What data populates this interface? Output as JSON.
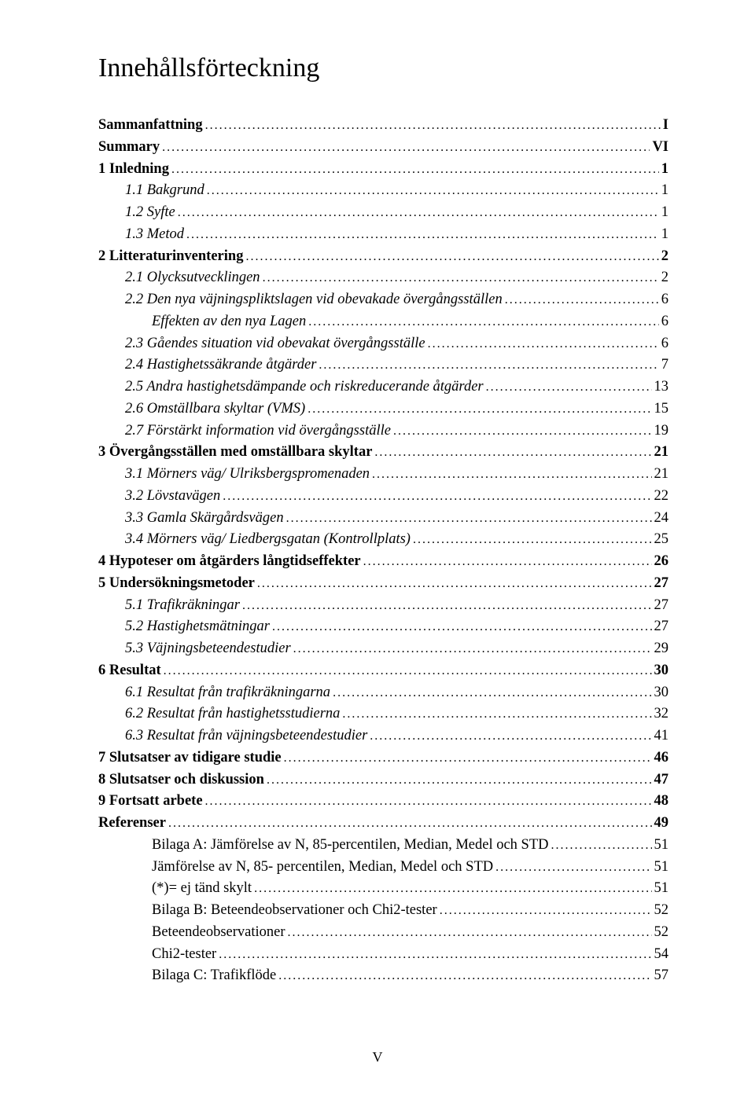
{
  "title": "Innehållsförteckning",
  "page_number": "V",
  "typography": {
    "title_fontsize_pt": 26,
    "body_fontsize_pt": 14,
    "font_family": "Times New Roman",
    "text_color": "#000000",
    "background_color": "#ffffff"
  },
  "toc": [
    {
      "label": "Sammanfattning",
      "page": "I",
      "level": 0,
      "bold": true,
      "italic": false
    },
    {
      "label": "Summary",
      "page": "VI",
      "level": 0,
      "bold": true,
      "italic": false
    },
    {
      "label": "1   Inledning",
      "page": "1",
      "level": 0,
      "bold": true,
      "italic": false
    },
    {
      "label": "1.1   Bakgrund",
      "page": "1",
      "level": 1,
      "bold": false,
      "italic": true
    },
    {
      "label": "1.2   Syfte",
      "page": "1",
      "level": 1,
      "bold": false,
      "italic": true
    },
    {
      "label": "1.3   Metod",
      "page": "1",
      "level": 1,
      "bold": false,
      "italic": true
    },
    {
      "label": "2   Litteraturinventering",
      "page": "2",
      "level": 0,
      "bold": true,
      "italic": false
    },
    {
      "label": "2.1   Olycksutvecklingen",
      "page": "2",
      "level": 1,
      "bold": false,
      "italic": true
    },
    {
      "label": "2.2   Den nya väjningspliktslagen vid obevakade övergångsställen",
      "page": "6",
      "level": 1,
      "bold": false,
      "italic": true
    },
    {
      "label": "Effekten av den nya Lagen",
      "page": "6",
      "level": 2,
      "bold": false,
      "italic": true
    },
    {
      "label": "2.3   Gåendes situation vid obevakat övergångsställe",
      "page": "6",
      "level": 1,
      "bold": false,
      "italic": true
    },
    {
      "label": "2.4   Hastighetssäkrande åtgärder",
      "page": "7",
      "level": 1,
      "bold": false,
      "italic": true
    },
    {
      "label": "2.5   Andra hastighetsdämpande och riskreducerande åtgärder",
      "page": "13",
      "level": 1,
      "bold": false,
      "italic": true
    },
    {
      "label": "2.6   Omställbara skyltar (VMS)",
      "page": "15",
      "level": 1,
      "bold": false,
      "italic": true
    },
    {
      "label": "2.7   Förstärkt information vid övergångsställe",
      "page": "19",
      "level": 1,
      "bold": false,
      "italic": true
    },
    {
      "label": "3   Övergångsställen med omställbara skyltar",
      "page": "21",
      "level": 0,
      "bold": true,
      "italic": false
    },
    {
      "label": "3.1   Mörners väg/ Ulriksbergspromenaden",
      "page": "21",
      "level": 1,
      "bold": false,
      "italic": true
    },
    {
      "label": "3.2   Lövstavägen",
      "page": "22",
      "level": 1,
      "bold": false,
      "italic": true
    },
    {
      "label": "3.3   Gamla Skärgårdsvägen",
      "page": "24",
      "level": 1,
      "bold": false,
      "italic": true
    },
    {
      "label": "3.4   Mörners väg/ Liedbergsgatan (Kontrollplats)",
      "page": "25",
      "level": 1,
      "bold": false,
      "italic": true
    },
    {
      "label": "4   Hypoteser om åtgärders långtidseffekter",
      "page": "26",
      "level": 0,
      "bold": true,
      "italic": false
    },
    {
      "label": "5   Undersökningsmetoder",
      "page": "27",
      "level": 0,
      "bold": true,
      "italic": false
    },
    {
      "label": "5.1   Trafikräkningar",
      "page": "27",
      "level": 1,
      "bold": false,
      "italic": true
    },
    {
      "label": "5.2   Hastighetsmätningar",
      "page": "27",
      "level": 1,
      "bold": false,
      "italic": true
    },
    {
      "label": "5.3   Väjningsbeteendestudier",
      "page": "29",
      "level": 1,
      "bold": false,
      "italic": true
    },
    {
      "label": "6   Resultat",
      "page": "30",
      "level": 0,
      "bold": true,
      "italic": false
    },
    {
      "label": "6.1   Resultat från trafikräkningarna",
      "page": "30",
      "level": 1,
      "bold": false,
      "italic": true
    },
    {
      "label": "6.2   Resultat från hastighetsstudierna",
      "page": "32",
      "level": 1,
      "bold": false,
      "italic": true
    },
    {
      "label": "6.3   Resultat från väjningsbeteendestudier",
      "page": "41",
      "level": 1,
      "bold": false,
      "italic": true
    },
    {
      "label": "7   Slutsatser av tidigare studie",
      "page": "46",
      "level": 0,
      "bold": true,
      "italic": false
    },
    {
      "label": "8   Slutsatser och diskussion",
      "page": "47",
      "level": 0,
      "bold": true,
      "italic": false
    },
    {
      "label": "9   Fortsatt arbete",
      "page": "48",
      "level": 0,
      "bold": true,
      "italic": false
    },
    {
      "label": "Referenser",
      "page": "49",
      "level": 0,
      "bold": true,
      "italic": false
    },
    {
      "label": "Bilaga A:  Jämförelse av  N, 85-percentilen, Median, Medel och STD",
      "page": "51",
      "level": 2,
      "bold": false,
      "italic": false
    },
    {
      "label": "Jämförelse av  N, 85- percentilen, Median, Medel och STD",
      "page": "51",
      "level": 2,
      "bold": false,
      "italic": false
    },
    {
      "label": "(*)= ej tänd skylt",
      "page": "51",
      "level": 2,
      "bold": false,
      "italic": false
    },
    {
      "label": "Bilaga B:  Beteendeobservationer och Chi2-tester",
      "page": "52",
      "level": 2,
      "bold": false,
      "italic": false
    },
    {
      "label": "Beteendeobservationer",
      "page": "52",
      "level": 2,
      "bold": false,
      "italic": false
    },
    {
      "label": "Chi2-tester",
      "page": "54",
      "level": 2,
      "bold": false,
      "italic": false
    },
    {
      "label": "Bilaga C:  Trafikflöde",
      "page": "57",
      "level": 2,
      "bold": false,
      "italic": false
    }
  ]
}
